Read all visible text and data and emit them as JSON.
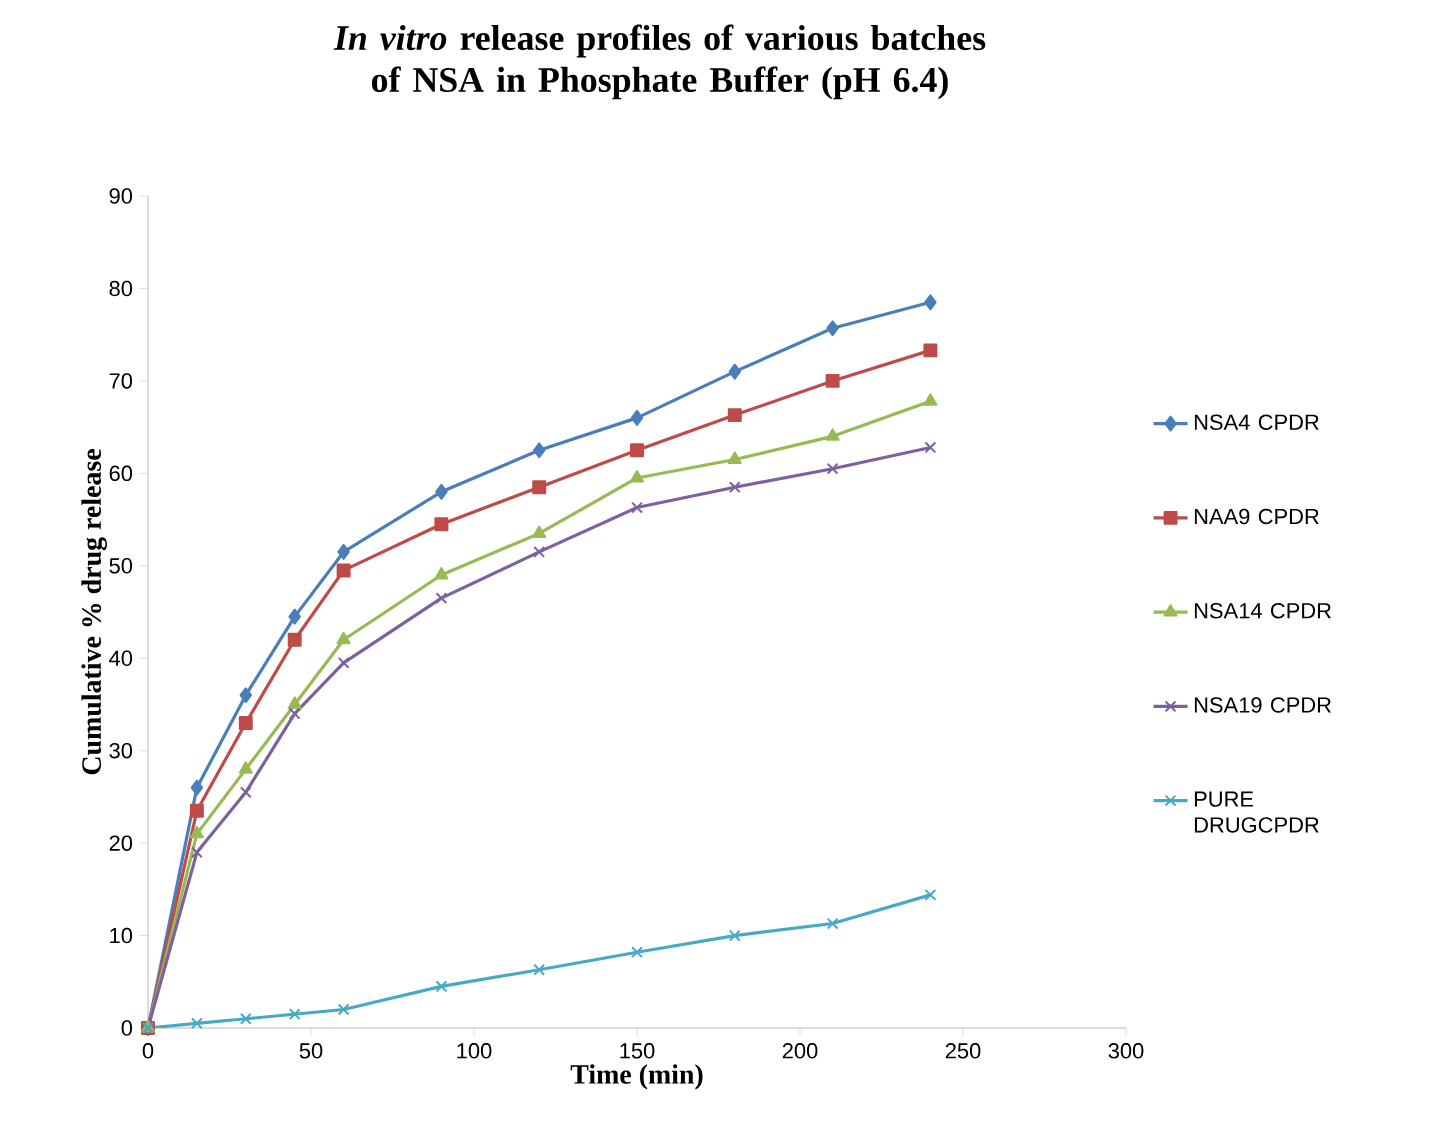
{
  "chart_data": {
    "type": "line",
    "title": "*In vitro* release profiles of various batches of NSA in Phosphate Buffer (pH 6.4)",
    "xlabel": "Time (min)",
    "ylabel": "Cumulative % drug release",
    "x": [
      0,
      15,
      30,
      45,
      60,
      90,
      120,
      150,
      180,
      210,
      240
    ],
    "series": [
      {
        "name": "NSA4 CPDR",
        "color": "#4a7ebb",
        "marker": "diamond",
        "values": [
          0,
          26,
          36,
          44.5,
          51.5,
          58,
          62.5,
          66,
          71,
          75.7,
          78.5
        ]
      },
      {
        "name": "NAA9 CPDR",
        "color": "#be4b48",
        "marker": "square",
        "values": [
          0,
          23.5,
          33,
          42,
          49.5,
          54.5,
          58.5,
          62.5,
          66.3,
          70,
          73.3
        ]
      },
      {
        "name": "NSA14 CPDR",
        "color": "#98b954",
        "marker": "triangle",
        "values": [
          0,
          21,
          28,
          35,
          42,
          49,
          53.5,
          59.5,
          61.5,
          64,
          67.8
        ]
      },
      {
        "name": "NSA19 CPDR",
        "color": "#7d60a0",
        "marker": "cross",
        "values": [
          0,
          19,
          25.5,
          34,
          39.5,
          46.5,
          51.5,
          56.3,
          58.5,
          60.5,
          62.8
        ]
      },
      {
        "name": "PURE DRUGCPDR",
        "color": "#46aac5",
        "marker": "cross",
        "values": [
          0,
          0.5,
          1,
          1.5,
          2,
          4.5,
          6.3,
          8.2,
          10,
          11.3,
          14.4
        ]
      }
    ],
    "xlim": [
      0,
      300
    ],
    "ylim": [
      0,
      90
    ],
    "xticks": [
      0,
      50,
      100,
      150,
      200,
      250,
      300
    ],
    "yticks": [
      0,
      10,
      20,
      30,
      40,
      50,
      60,
      70,
      80,
      90
    ],
    "grid": false,
    "legend": "right"
  }
}
